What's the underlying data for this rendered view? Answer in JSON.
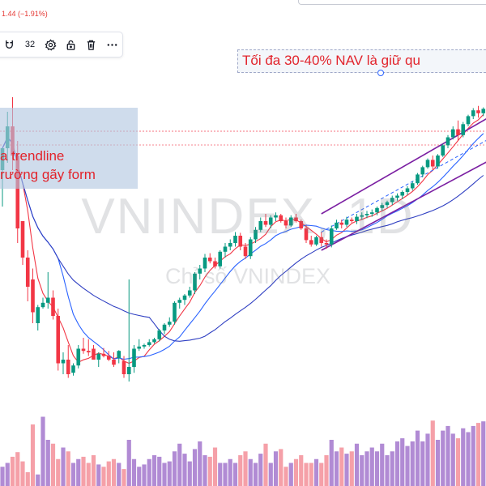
{
  "header": {
    "price_change": "1.44 (−1.91%)"
  },
  "toolbar": {
    "line_width_label": "32"
  },
  "annotations": {
    "top_text": "Tối đa 30-40% NAV là giữ qu",
    "left_line1": "a trendline",
    "left_line2": "rường gãy form"
  },
  "watermark": {
    "symbol": "VNINDEX, 1D",
    "description": "Chỉ số VNINDEX"
  },
  "colors": {
    "up": "#089981",
    "down": "#f23645",
    "vol_up": "#b18bd4",
    "vol_down": "#f5a0a8",
    "ma_fast": "#f23645",
    "ma_mid": "#2962ff",
    "ma_slow": "#2f3fc2",
    "channel": "#7b1fa2",
    "channel_mid": "#2962ff",
    "annotation_text": "#e2242c"
  },
  "icons": [
    "magnet-icon",
    "settings-gear-icon",
    "lock-icon",
    "trash-icon",
    "more-dots-icon"
  ],
  "chart_data": {
    "type": "candlestick",
    "candles": [
      [
        300,
        330,
        250,
        330
      ],
      [
        330,
        380,
        310,
        360
      ],
      [
        360,
        400,
        300,
        320
      ],
      [
        320,
        340,
        200,
        220
      ],
      [
        230,
        230,
        170,
        180
      ],
      [
        180,
        190,
        120,
        140
      ],
      [
        150,
        165,
        90,
        105
      ],
      [
        90,
        115,
        80,
        112
      ],
      [
        112,
        125,
        110,
        118
      ],
      [
        118,
        160,
        110,
        125
      ],
      [
        125,
        135,
        95,
        100
      ],
      [
        100,
        110,
        25,
        35
      ],
      [
        35,
        50,
        20,
        40
      ],
      [
        40,
        60,
        15,
        20
      ],
      [
        22,
        35,
        18,
        32
      ],
      [
        32,
        60,
        28,
        55
      ],
      [
        55,
        70,
        48,
        52
      ],
      [
        52,
        68,
        45,
        50
      ],
      [
        55,
        60,
        40,
        40
      ],
      [
        40,
        50,
        30,
        48
      ],
      [
        48,
        56,
        43,
        45
      ],
      [
        45,
        52,
        38,
        40
      ],
      [
        40,
        50,
        30,
        33
      ],
      [
        42,
        53,
        35,
        52
      ],
      [
        38,
        45,
        15,
        20
      ],
      [
        20,
        150,
        10,
        30
      ],
      [
        30,
        60,
        22,
        55
      ],
      [
        55,
        68,
        52,
        58
      ],
      [
        58,
        62,
        55,
        60
      ],
      [
        60,
        68,
        58,
        64
      ],
      [
        64,
        70,
        62,
        68
      ],
      [
        68,
        82,
        65,
        80
      ],
      [
        80,
        90,
        75,
        88
      ],
      [
        88,
        98,
        85,
        92
      ],
      [
        92,
        120,
        88,
        118
      ],
      [
        118,
        125,
        110,
        122
      ],
      [
        122,
        130,
        115,
        128
      ],
      [
        128,
        140,
        125,
        135
      ],
      [
        135,
        160,
        130,
        158
      ],
      [
        158,
        170,
        150,
        165
      ],
      [
        165,
        185,
        160,
        180
      ],
      [
        180,
        186,
        172,
        175
      ],
      [
        175,
        180,
        165,
        168
      ],
      [
        168,
        190,
        165,
        188
      ],
      [
        188,
        200,
        180,
        195
      ],
      [
        195,
        205,
        190,
        200
      ],
      [
        200,
        215,
        195,
        210
      ],
      [
        210,
        214,
        190,
        195
      ],
      [
        195,
        200,
        178,
        182
      ],
      [
        182,
        208,
        178,
        205
      ],
      [
        205,
        222,
        200,
        218
      ],
      [
        218,
        235,
        215,
        230
      ],
      [
        230,
        240,
        222,
        225
      ],
      [
        225,
        238,
        220,
        235
      ],
      [
        235,
        242,
        230,
        238
      ],
      [
        238,
        240,
        228,
        230
      ],
      [
        230,
        235,
        220,
        224
      ],
      [
        224,
        238,
        222,
        235
      ],
      [
        235,
        240,
        228,
        230
      ],
      [
        230,
        232,
        218,
        220
      ],
      [
        220,
        224,
        200,
        204
      ],
      [
        204,
        210,
        195,
        198
      ],
      [
        198,
        210,
        196,
        208
      ],
      [
        208,
        215,
        195,
        200
      ],
      [
        200,
        205,
        192,
        198
      ],
      [
        198,
        224,
        194,
        220
      ],
      [
        220,
        232,
        218,
        228
      ],
      [
        228,
        232,
        220,
        225
      ],
      [
        225,
        236,
        222,
        232
      ],
      [
        232,
        235,
        228,
        230
      ],
      [
        230,
        240,
        226,
        236
      ],
      [
        236,
        242,
        232,
        238
      ],
      [
        238,
        244,
        234,
        240
      ],
      [
        240,
        246,
        236,
        242
      ],
      [
        242,
        250,
        238,
        248
      ],
      [
        248,
        255,
        244,
        252
      ],
      [
        252,
        258,
        248,
        256
      ],
      [
        256,
        265,
        252,
        262
      ],
      [
        262,
        268,
        258,
        265
      ],
      [
        265,
        272,
        260,
        270
      ],
      [
        270,
        278,
        266,
        275
      ],
      [
        275,
        285,
        272,
        282
      ],
      [
        282,
        296,
        280,
        294
      ],
      [
        294,
        306,
        290,
        304
      ],
      [
        304,
        316,
        302,
        314
      ],
      [
        314,
        320,
        300,
        305
      ],
      [
        305,
        322,
        302,
        320
      ],
      [
        320,
        336,
        318,
        334
      ],
      [
        334,
        348,
        330,
        345
      ],
      [
        345,
        360,
        342,
        356
      ],
      [
        356,
        368,
        340,
        348
      ],
      [
        348,
        366,
        345,
        363
      ],
      [
        363,
        376,
        360,
        374
      ],
      [
        374,
        385,
        370,
        382
      ],
      [
        382,
        388,
        372,
        378
      ],
      [
        378,
        386,
        374,
        384
      ]
    ],
    "volume_level": [
      0.25,
      0.3,
      0.38,
      0.44,
      0.32,
      0.18,
      0.8,
      0.15,
      0.9,
      0.6,
      0.55,
      0.35,
      0.5,
      0.45,
      0.3,
      0.35,
      0.38,
      0.3,
      0.4,
      0.28,
      0.25,
      0.32,
      0.35,
      0.3,
      0.22,
      0.6,
      0.35,
      0.25,
      0.28,
      0.35,
      0.4,
      0.38,
      0.3,
      0.32,
      0.45,
      0.55,
      0.42,
      0.32,
      0.48,
      0.58,
      0.4,
      0.38,
      0.5,
      0.3,
      0.3,
      0.35,
      0.3,
      0.4,
      0.45,
      0.35,
      0.3,
      0.42,
      0.55,
      0.3,
      0.45,
      0.48,
      0.25,
      0.3,
      0.35,
      0.4,
      0.3,
      0.3,
      0.35,
      0.3,
      0.4,
      0.6,
      0.45,
      0.5,
      0.42,
      0.45,
      0.55,
      0.4,
      0.45,
      0.5,
      0.45,
      0.55,
      0.4,
      0.45,
      0.58,
      0.62,
      0.52,
      0.58,
      0.72,
      0.58,
      0.68,
      0.85,
      0.6,
      0.72,
      0.78,
      0.68,
      0.62,
      0.75,
      0.7,
      0.78,
      0.82,
      0.84
    ]
  }
}
